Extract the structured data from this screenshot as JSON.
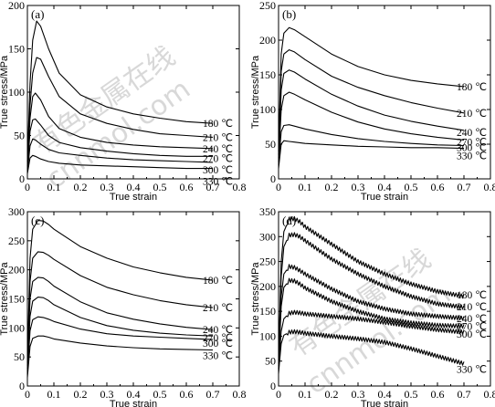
{
  "watermark": {
    "cn": "有色金属在线",
    "url": "cnnmol.com"
  },
  "chart_data": [
    {
      "type": "line",
      "panel_label": "(a)",
      "xlabel": "True strain",
      "ylabel": "True stress/MPa",
      "xlim": [
        0,
        0.8
      ],
      "ylim": [
        0,
        200
      ],
      "xticks": [
        "0",
        "0.1",
        "0.2",
        "0.3",
        "0.4",
        "0.5",
        "0.6",
        "0.7",
        "0.8"
      ],
      "yticks": [
        "0",
        "50",
        "100",
        "150",
        "200"
      ],
      "series": [
        {
          "name": "180 ℃",
          "x": [
            0,
            0.01,
            0.02,
            0.035,
            0.05,
            0.08,
            0.12,
            0.2,
            0.3,
            0.4,
            0.5,
            0.6,
            0.7
          ],
          "y": [
            20,
            110,
            160,
            182,
            176,
            150,
            122,
            97,
            83,
            75,
            70,
            66,
            64
          ]
        },
        {
          "name": "210 ℃",
          "x": [
            0,
            0.01,
            0.02,
            0.035,
            0.05,
            0.08,
            0.12,
            0.2,
            0.3,
            0.4,
            0.5,
            0.6,
            0.7
          ],
          "y": [
            15,
            85,
            122,
            140,
            138,
            118,
            95,
            75,
            64,
            57,
            52,
            50,
            48
          ]
        },
        {
          "name": "240 ℃",
          "x": [
            0,
            0.01,
            0.02,
            0.03,
            0.05,
            0.08,
            0.12,
            0.2,
            0.3,
            0.4,
            0.5,
            0.6,
            0.7
          ],
          "y": [
            12,
            70,
            95,
            99,
            91,
            72,
            58,
            48,
            42,
            39,
            37,
            36,
            35
          ]
        },
        {
          "name": "270 ℃",
          "x": [
            0,
            0.01,
            0.02,
            0.03,
            0.05,
            0.08,
            0.12,
            0.2,
            0.3,
            0.4,
            0.5,
            0.6,
            0.7
          ],
          "y": [
            10,
            55,
            68,
            69,
            62,
            50,
            42,
            36,
            32,
            29,
            27,
            26,
            26
          ]
        },
        {
          "name": "300 ℃",
          "x": [
            0,
            0.01,
            0.02,
            0.03,
            0.05,
            0.08,
            0.12,
            0.2,
            0.3,
            0.4,
            0.5,
            0.6,
            0.7
          ],
          "y": [
            8,
            38,
            46,
            45,
            40,
            34,
            30,
            27,
            24,
            22,
            21,
            20,
            19
          ]
        },
        {
          "name": "330 ℃",
          "x": [
            0,
            0.01,
            0.02,
            0.03,
            0.05,
            0.08,
            0.12,
            0.2,
            0.3,
            0.4,
            0.5,
            0.6,
            0.7
          ],
          "y": [
            6,
            24,
            27,
            26,
            23,
            20,
            18,
            16,
            15,
            14,
            13,
            12,
            12
          ]
        }
      ]
    },
    {
      "type": "line",
      "panel_label": "(b)",
      "xlabel": "True strain",
      "ylabel": "True stress/MPa",
      "xlim": [
        0,
        0.8
      ],
      "ylim": [
        0,
        250
      ],
      "xticks": [
        "0",
        "0.1",
        "0.2",
        "0.3",
        "0.4",
        "0.5",
        "0.6",
        "0.7",
        "0.8"
      ],
      "yticks": [
        "0",
        "50",
        "100",
        "150",
        "200",
        "250"
      ],
      "series": [
        {
          "name": "180 ℃",
          "x": [
            0,
            0.01,
            0.02,
            0.04,
            0.06,
            0.1,
            0.2,
            0.3,
            0.4,
            0.5,
            0.6,
            0.7
          ],
          "y": [
            40,
            180,
            210,
            218,
            215,
            205,
            180,
            162,
            150,
            142,
            137,
            133
          ]
        },
        {
          "name": "210 ℃",
          "x": [
            0,
            0.01,
            0.02,
            0.04,
            0.06,
            0.1,
            0.2,
            0.3,
            0.4,
            0.5,
            0.6,
            0.7
          ],
          "y": [
            35,
            155,
            180,
            186,
            183,
            172,
            148,
            132,
            120,
            110,
            102,
            95
          ]
        },
        {
          "name": "240 ℃",
          "x": [
            0,
            0.01,
            0.02,
            0.04,
            0.06,
            0.1,
            0.2,
            0.3,
            0.4,
            0.5,
            0.6,
            0.7
          ],
          "y": [
            30,
            128,
            152,
            157,
            154,
            144,
            122,
            105,
            92,
            83,
            76,
            70
          ]
        },
        {
          "name": "270 ℃",
          "x": [
            0,
            0.01,
            0.02,
            0.04,
            0.06,
            0.1,
            0.2,
            0.3,
            0.4,
            0.5,
            0.6,
            0.7
          ],
          "y": [
            25,
            100,
            120,
            125,
            122,
            114,
            96,
            82,
            72,
            65,
            60,
            56
          ]
        },
        {
          "name": "300 ℃",
          "x": [
            0,
            0.01,
            0.02,
            0.04,
            0.06,
            0.1,
            0.2,
            0.3,
            0.4,
            0.5,
            0.6,
            0.7
          ],
          "y": [
            20,
            68,
            77,
            78,
            76,
            72,
            64,
            58,
            54,
            51,
            49,
            48
          ]
        },
        {
          "name": "330 ℃",
          "x": [
            0,
            0.01,
            0.02,
            0.04,
            0.06,
            0.1,
            0.2,
            0.3,
            0.4,
            0.5,
            0.6,
            0.7
          ],
          "y": [
            15,
            50,
            55,
            54,
            53,
            51,
            49,
            47,
            46,
            45,
            45,
            44
          ]
        }
      ]
    },
    {
      "type": "line",
      "panel_label": "(c)",
      "xlabel": "True strain",
      "ylabel": "True stress/MPa",
      "xlim": [
        0,
        0.8
      ],
      "ylim": [
        0,
        300
      ],
      "xticks": [
        "0",
        "0.1",
        "0.2",
        "0.3",
        "0.4",
        "0.5",
        "0.6",
        "0.7",
        "0.8"
      ],
      "yticks": [
        "0",
        "50",
        "100",
        "150",
        "200",
        "250",
        "300"
      ],
      "series": [
        {
          "name": "180 ℃",
          "x": [
            0,
            0.01,
            0.02,
            0.04,
            0.06,
            0.08,
            0.1,
            0.2,
            0.3,
            0.4,
            0.5,
            0.6,
            0.7
          ],
          "y": [
            40,
            220,
            270,
            285,
            284,
            278,
            270,
            240,
            220,
            205,
            195,
            187,
            182
          ]
        },
        {
          "name": "210 ℃",
          "x": [
            0,
            0.01,
            0.02,
            0.04,
            0.06,
            0.08,
            0.1,
            0.2,
            0.3,
            0.4,
            0.5,
            0.6,
            0.7
          ],
          "y": [
            35,
            180,
            220,
            231,
            230,
            225,
            218,
            190,
            170,
            157,
            147,
            140,
            135
          ]
        },
        {
          "name": "240 ℃",
          "x": [
            0,
            0.01,
            0.02,
            0.04,
            0.06,
            0.08,
            0.1,
            0.2,
            0.3,
            0.4,
            0.5,
            0.6,
            0.7
          ],
          "y": [
            30,
            150,
            180,
            187,
            186,
            180,
            172,
            145,
            126,
            115,
            107,
            101,
            97
          ]
        },
        {
          "name": "270 ℃",
          "x": [
            0,
            0.01,
            0.02,
            0.04,
            0.06,
            0.08,
            0.1,
            0.2,
            0.3,
            0.4,
            0.5,
            0.6,
            0.7
          ],
          "y": [
            25,
            120,
            146,
            153,
            152,
            147,
            140,
            118,
            104,
            96,
            91,
            88,
            86
          ]
        },
        {
          "name": "300 ℃",
          "x": [
            0,
            0.01,
            0.02,
            0.04,
            0.06,
            0.08,
            0.1,
            0.2,
            0.3,
            0.4,
            0.5,
            0.6,
            0.7
          ],
          "y": [
            20,
            95,
            114,
            119,
            118,
            115,
            111,
            98,
            90,
            86,
            84,
            82,
            80
          ]
        },
        {
          "name": "330 ℃",
          "x": [
            0,
            0.01,
            0.02,
            0.04,
            0.06,
            0.08,
            0.1,
            0.2,
            0.3,
            0.4,
            0.5,
            0.6,
            0.7
          ],
          "y": [
            15,
            68,
            82,
            86,
            86,
            84,
            81,
            74,
            69,
            66,
            64,
            63,
            62
          ]
        }
      ]
    },
    {
      "type": "line",
      "panel_label": "(d)",
      "xlabel": "True strain",
      "ylabel": "True stress/MPa",
      "xlim": [
        0,
        0.8
      ],
      "ylim": [
        0,
        350
      ],
      "xticks": [
        "0",
        "0.1",
        "0.2",
        "0.3",
        "0.4",
        "0.5",
        "0.6",
        "0.7",
        "0.8"
      ],
      "yticks": [
        "0",
        "50",
        "100",
        "150",
        "200",
        "250",
        "300",
        "350"
      ],
      "series": [
        {
          "name": "180 ℃",
          "x": [
            0,
            0.01,
            0.02,
            0.04,
            0.06,
            0.08,
            0.1,
            0.2,
            0.3,
            0.4,
            0.5,
            0.6,
            0.7
          ],
          "y": [
            50,
            250,
            310,
            335,
            336,
            330,
            320,
            285,
            250,
            225,
            205,
            190,
            180
          ]
        },
        {
          "name": "210 ℃",
          "x": [
            0,
            0.01,
            0.02,
            0.04,
            0.06,
            0.08,
            0.1,
            0.2,
            0.3,
            0.4,
            0.5,
            0.6,
            0.7
          ],
          "y": [
            45,
            220,
            280,
            303,
            304,
            300,
            292,
            255,
            225,
            200,
            180,
            165,
            158
          ]
        },
        {
          "name": "240 ℃",
          "x": [
            0,
            0.01,
            0.02,
            0.04,
            0.06,
            0.08,
            0.1,
            0.2,
            0.3,
            0.4,
            0.5,
            0.6,
            0.7
          ],
          "y": [
            40,
            180,
            225,
            240,
            238,
            232,
            225,
            195,
            170,
            155,
            145,
            140,
            136
          ]
        },
        {
          "name": "270 ℃",
          "x": [
            0,
            0.01,
            0.02,
            0.04,
            0.06,
            0.08,
            0.1,
            0.2,
            0.3,
            0.4,
            0.5,
            0.6,
            0.7
          ],
          "y": [
            35,
            160,
            198,
            212,
            211,
            205,
            197,
            170,
            150,
            135,
            127,
            122,
            120
          ]
        },
        {
          "name": "300 ℃",
          "x": [
            0,
            0.01,
            0.02,
            0.04,
            0.06,
            0.08,
            0.1,
            0.2,
            0.3,
            0.4,
            0.5,
            0.6,
            0.7
          ],
          "y": [
            30,
            110,
            135,
            146,
            148,
            147,
            145,
            140,
            135,
            128,
            120,
            113,
            108
          ]
        },
        {
          "name": "330 ℃",
          "x": [
            0,
            0.01,
            0.02,
            0.04,
            0.06,
            0.08,
            0.1,
            0.2,
            0.3,
            0.4,
            0.5,
            0.6,
            0.7
          ],
          "y": [
            25,
            85,
            102,
            108,
            109,
            108,
            106,
            100,
            95,
            88,
            75,
            60,
            45
          ]
        }
      ]
    }
  ]
}
